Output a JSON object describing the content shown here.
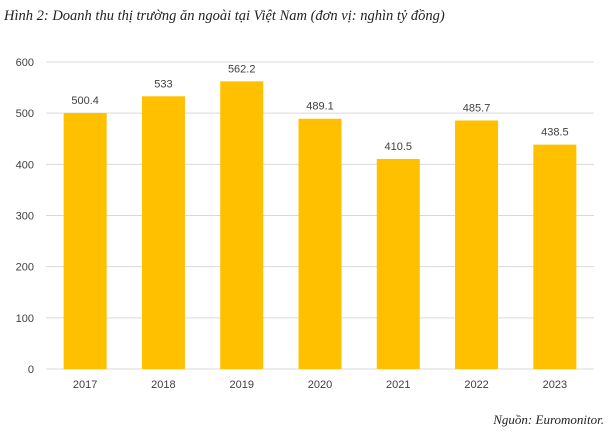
{
  "caption": "Hình 2: Doanh thu thị trường ăn ngoài tại Việt Nam (đơn vị: nghìn tỷ đồng)",
  "source": "Nguồn: Euromonitor.",
  "colors": {
    "bar": "#FFC000",
    "grid": "#D9D9D9",
    "text": "#404040"
  },
  "chart_data": {
    "type": "bar",
    "title": "Hình 2: Doanh thu thị trường ăn ngoài tại Việt Nam (đơn vị: nghìn tỷ đồng)",
    "categories": [
      "2017",
      "2018",
      "2019",
      "2020",
      "2021",
      "2022",
      "2023"
    ],
    "values": [
      500.4,
      533,
      562.2,
      489.1,
      410.5,
      485.7,
      438.5
    ],
    "value_labels": [
      "500.4",
      "533",
      "562.2",
      "489.1",
      "410.5",
      "485.7",
      "438.5"
    ],
    "ylim": [
      0,
      600
    ],
    "yticks": [
      0,
      100,
      200,
      300,
      400,
      500,
      600
    ],
    "xlabel": "",
    "ylabel": "",
    "grid": true,
    "legend": "none"
  }
}
